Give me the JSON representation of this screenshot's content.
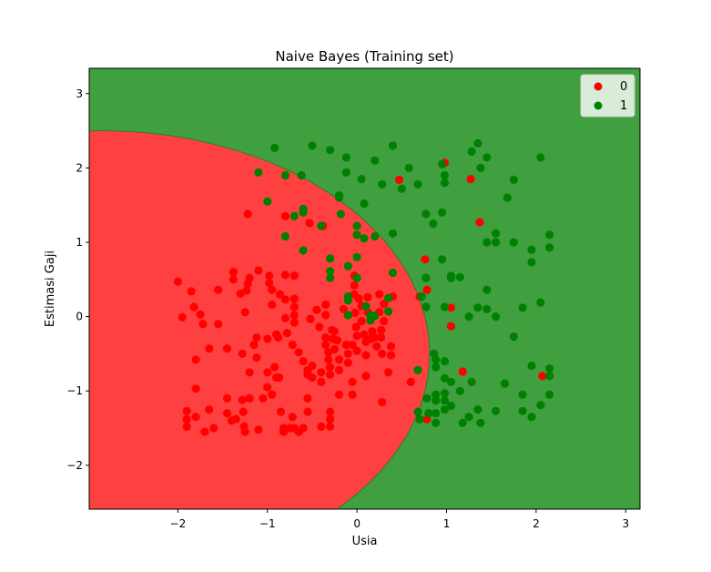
{
  "chart_data": {
    "type": "scatter",
    "title": "Naive Bayes (Training set)",
    "xlabel": "Usia",
    "ylabel": "Estimasi Gaji",
    "xlim": [
      -2.99,
      3.16
    ],
    "ylim": [
      -2.59,
      3.34
    ],
    "xticks": [
      -2,
      -1,
      0,
      1,
      2,
      3
    ],
    "yticks": [
      -2,
      -1,
      0,
      1,
      2,
      3
    ],
    "xtick_labels": [
      "−2",
      "−1",
      "0",
      "1",
      "2",
      "3"
    ],
    "ytick_labels": [
      "−2",
      "−1",
      "0",
      "1",
      "2",
      "3"
    ],
    "grid": false,
    "legend_position": "top-right",
    "decision_regions": [
      {
        "class": "0",
        "color": "#ff4040"
      },
      {
        "class": "1",
        "color": "#40a040"
      }
    ],
    "series": [
      {
        "name": "0",
        "color": "#ff0000",
        "points": [
          [
            -2.0,
            0.47
          ],
          [
            -1.95,
            -0.01
          ],
          [
            -1.9,
            -1.27
          ],
          [
            -1.9,
            -1.38
          ],
          [
            -1.9,
            -1.48
          ],
          [
            -1.85,
            0.34
          ],
          [
            -1.82,
            0.13
          ],
          [
            -1.8,
            -0.58
          ],
          [
            -1.8,
            -0.97
          ],
          [
            -1.8,
            -1.35
          ],
          [
            -1.75,
            0.03
          ],
          [
            -1.72,
            -0.1
          ],
          [
            -1.7,
            -1.55
          ],
          [
            -1.65,
            -0.43
          ],
          [
            -1.65,
            -1.25
          ],
          [
            -1.6,
            -1.5
          ],
          [
            -1.55,
            0.36
          ],
          [
            -1.55,
            -0.1
          ],
          [
            -1.45,
            -0.43
          ],
          [
            -1.45,
            -1.1
          ],
          [
            -1.45,
            -1.3
          ],
          [
            -1.4,
            -1.4
          ],
          [
            -1.38,
            0.6
          ],
          [
            -1.38,
            0.5
          ],
          [
            -1.35,
            -1.38
          ],
          [
            -1.3,
            0.31
          ],
          [
            -1.28,
            -0.5
          ],
          [
            -1.28,
            -1.12
          ],
          [
            -1.27,
            -1.28
          ],
          [
            -1.26,
            -1.48
          ],
          [
            -1.25,
            -1.55
          ],
          [
            -1.25,
            0.06
          ],
          [
            -1.23,
            0.35
          ],
          [
            -1.22,
            0.44
          ],
          [
            -1.22,
            1.38
          ],
          [
            -1.2,
            0.52
          ],
          [
            -1.2,
            -0.75
          ],
          [
            -1.2,
            -1.1
          ],
          [
            -1.15,
            -0.38
          ],
          [
            -1.12,
            -0.28
          ],
          [
            -1.12,
            -0.55
          ],
          [
            -1.1,
            0.62
          ],
          [
            -1.1,
            -1.52
          ],
          [
            -1.05,
            -1.1
          ],
          [
            -1.0,
            -0.3
          ],
          [
            -1.0,
            -0.75
          ],
          [
            -1.0,
            -0.95
          ],
          [
            -0.98,
            0.55
          ],
          [
            -0.98,
            0.45
          ],
          [
            -0.95,
            0.36
          ],
          [
            -0.95,
            0.16
          ],
          [
            -0.95,
            -1.05
          ],
          [
            -0.92,
            -0.68
          ],
          [
            -0.9,
            -0.24
          ],
          [
            -0.9,
            -0.82
          ],
          [
            -0.88,
            -0.28
          ],
          [
            -0.87,
            -0.82
          ],
          [
            -0.86,
            0.3
          ],
          [
            -0.85,
            -1.28
          ],
          [
            -0.82,
            -1.5
          ],
          [
            -0.82,
            -1.55
          ],
          [
            -0.8,
            0.56
          ],
          [
            -0.8,
            0.23
          ],
          [
            -0.8,
            -0.02
          ],
          [
            -0.8,
            1.35
          ],
          [
            -0.78,
            -0.22
          ],
          [
            -0.75,
            -1.5
          ],
          [
            -0.72,
            -0.38
          ],
          [
            -0.72,
            -1.35
          ],
          [
            -0.7,
            0.55
          ],
          [
            -0.7,
            0.24
          ],
          [
            -0.7,
            0.13
          ],
          [
            -0.7,
            0.02
          ],
          [
            -0.7,
            -0.08
          ],
          [
            -0.7,
            -1.5
          ],
          [
            -0.65,
            -0.48
          ],
          [
            -0.65,
            -1.55
          ],
          [
            -0.6,
            -1.5
          ],
          [
            -0.6,
            -0.6
          ],
          [
            -0.55,
            -0.78
          ],
          [
            -0.55,
            -0.72
          ],
          [
            -0.55,
            -1.1
          ],
          [
            -0.55,
            -1.28
          ],
          [
            -0.53,
            1.26
          ],
          [
            -0.52,
            -0.03
          ],
          [
            -0.5,
            -0.66
          ],
          [
            -0.5,
            -0.82
          ],
          [
            -0.45,
            0.09
          ],
          [
            -0.42,
            -0.14
          ],
          [
            -0.4,
            -0.75
          ],
          [
            -0.4,
            -0.88
          ],
          [
            -0.4,
            -1.48
          ],
          [
            -0.38,
            1.22
          ],
          [
            -0.35,
            0.16
          ],
          [
            -0.35,
            0.02
          ],
          [
            -0.35,
            -0.28
          ],
          [
            -0.35,
            -0.38
          ],
          [
            -0.32,
            -0.48
          ],
          [
            -0.32,
            -0.58
          ],
          [
            -0.3,
            -0.68
          ],
          [
            -0.3,
            -0.78
          ],
          [
            -0.3,
            -1.28
          ],
          [
            -0.3,
            -1.38
          ],
          [
            -0.3,
            -1.48
          ],
          [
            -0.28,
            -0.18
          ],
          [
            -0.27,
            -0.3
          ],
          [
            -0.25,
            -0.2
          ],
          [
            -0.25,
            -0.44
          ],
          [
            -0.22,
            -0.32
          ],
          [
            -0.2,
            -1.05
          ],
          [
            -0.2,
            -0.72
          ],
          [
            -0.2,
            -0.58
          ],
          [
            -0.15,
            0.1
          ],
          [
            -0.12,
            -0.38
          ],
          [
            -0.1,
            -0.5
          ],
          [
            -0.1,
            -0.62
          ],
          [
            -0.05,
            -0.38
          ],
          [
            -0.05,
            -0.88
          ],
          [
            -0.05,
            -1.05
          ],
          [
            -0.03,
            0.55
          ],
          [
            -0.03,
            0.42
          ],
          [
            -0.03,
            0.3
          ],
          [
            -0.02,
            0.05
          ],
          [
            -0.01,
            -0.14
          ],
          [
            0.0,
            -0.26
          ],
          [
            0.0,
            -0.46
          ],
          [
            0.02,
            0.24
          ],
          [
            0.05,
            0.14
          ],
          [
            0.05,
            -0.06
          ],
          [
            0.08,
            -0.24
          ],
          [
            0.1,
            -0.34
          ],
          [
            0.1,
            -0.52
          ],
          [
            0.1,
            -0.8
          ],
          [
            0.12,
            0.26
          ],
          [
            0.12,
            0.06
          ],
          [
            0.15,
            -0.3
          ],
          [
            0.17,
            -0.2
          ],
          [
            0.2,
            -0.28
          ],
          [
            0.22,
            -0.4
          ],
          [
            0.25,
            0.3
          ],
          [
            0.25,
            0.06
          ],
          [
            0.27,
            -0.18
          ],
          [
            0.27,
            -0.28
          ],
          [
            0.28,
            -0.5
          ],
          [
            0.28,
            -1.15
          ],
          [
            0.3,
            0.17
          ],
          [
            0.3,
            -0.06
          ],
          [
            0.35,
            0.07
          ],
          [
            0.35,
            -0.75
          ],
          [
            0.38,
            -0.4
          ],
          [
            0.38,
            -0.52
          ],
          [
            0.4,
            0.27
          ],
          [
            0.47,
            1.84
          ],
          [
            0.6,
            -0.88
          ],
          [
            0.7,
            0.27
          ],
          [
            0.76,
            0.77
          ],
          [
            0.78,
            0.36
          ],
          [
            0.78,
            -1.38
          ],
          [
            0.98,
            2.07
          ],
          [
            1.05,
            0.12
          ],
          [
            1.05,
            -0.13
          ],
          [
            1.18,
            -0.74
          ],
          [
            1.27,
            1.85
          ],
          [
            1.37,
            1.27
          ],
          [
            2.07,
            -0.8
          ]
        ]
      },
      {
        "name": "1",
        "color": "#008000",
        "points": [
          [
            -1.1,
            1.94
          ],
          [
            -1.0,
            1.55
          ],
          [
            -0.92,
            2.27
          ],
          [
            -0.8,
            1.9
          ],
          [
            -0.8,
            1.08
          ],
          [
            -0.7,
            1.35
          ],
          [
            -0.62,
            1.9
          ],
          [
            -0.6,
            1.4
          ],
          [
            -0.6,
            1.45
          ],
          [
            -0.6,
            0.89
          ],
          [
            -0.5,
            2.3
          ],
          [
            -0.4,
            1.22
          ],
          [
            -0.3,
            2.24
          ],
          [
            -0.3,
            0.78
          ],
          [
            -0.3,
            0.61
          ],
          [
            -0.3,
            0.52
          ],
          [
            -0.2,
            1.6
          ],
          [
            -0.2,
            1.63
          ],
          [
            -0.18,
            1.38
          ],
          [
            -0.12,
            2.14
          ],
          [
            -0.12,
            1.94
          ],
          [
            -0.1,
            0.68
          ],
          [
            -0.1,
            0.27
          ],
          [
            -0.1,
            0.22
          ],
          [
            -0.1,
            0.02
          ],
          [
            0.0,
            1.22
          ],
          [
            0.0,
            1.1
          ],
          [
            0.0,
            0.8
          ],
          [
            0.0,
            0.52
          ],
          [
            0.05,
            1.85
          ],
          [
            0.08,
            1.52
          ],
          [
            0.08,
            1.05
          ],
          [
            0.1,
            0.14
          ],
          [
            0.15,
            0.02
          ],
          [
            0.15,
            -0.05
          ],
          [
            0.2,
            2.1
          ],
          [
            0.2,
            1.08
          ],
          [
            0.2,
            0.01
          ],
          [
            0.28,
            1.78
          ],
          [
            0.35,
            0.07
          ],
          [
            0.35,
            0.25
          ],
          [
            0.4,
            2.3
          ],
          [
            0.4,
            1.12
          ],
          [
            0.4,
            0.59
          ],
          [
            0.5,
            1.72
          ],
          [
            0.58,
            2.0
          ],
          [
            0.68,
            -0.72
          ],
          [
            0.68,
            1.78
          ],
          [
            0.68,
            -1.28
          ],
          [
            0.7,
            -1.38
          ],
          [
            0.72,
            0.27
          ],
          [
            0.77,
            1.38
          ],
          [
            0.77,
            0.52
          ],
          [
            0.77,
            0.13
          ],
          [
            0.78,
            -1.1
          ],
          [
            0.8,
            -1.3
          ],
          [
            0.85,
            1.25
          ],
          [
            0.86,
            -0.5
          ],
          [
            0.88,
            -0.58
          ],
          [
            0.88,
            -0.68
          ],
          [
            0.88,
            -1.05
          ],
          [
            0.88,
            -1.13
          ],
          [
            0.88,
            -1.3
          ],
          [
            0.88,
            -1.43
          ],
          [
            0.95,
            0.77
          ],
          [
            0.95,
            1.4
          ],
          [
            0.95,
            2.05
          ],
          [
            0.98,
            1.9
          ],
          [
            0.98,
            1.8
          ],
          [
            0.98,
            0.13
          ],
          [
            0.98,
            -0.6
          ],
          [
            0.98,
            -0.83
          ],
          [
            0.98,
            -1.03
          ],
          [
            0.98,
            -1.13
          ],
          [
            0.98,
            -1.25
          ],
          [
            1.05,
            0.55
          ],
          [
            1.05,
            0.52
          ],
          [
            1.05,
            -0.88
          ],
          [
            1.05,
            -1.2
          ],
          [
            1.15,
            0.53
          ],
          [
            1.15,
            -1.0
          ],
          [
            1.18,
            -1.43
          ],
          [
            1.25,
            0.0
          ],
          [
            1.25,
            -1.35
          ],
          [
            1.28,
            2.22
          ],
          [
            1.28,
            -0.88
          ],
          [
            1.35,
            2.33
          ],
          [
            1.35,
            0.12
          ],
          [
            1.35,
            -1.25
          ],
          [
            1.38,
            2.0
          ],
          [
            1.38,
            -1.43
          ],
          [
            1.45,
            0.1
          ],
          [
            1.45,
            0.36
          ],
          [
            1.45,
            1.0
          ],
          [
            1.45,
            2.14
          ],
          [
            1.55,
            1.12
          ],
          [
            1.55,
            1.0
          ],
          [
            1.55,
            0.0
          ],
          [
            1.55,
            -1.27
          ],
          [
            1.65,
            -0.9
          ],
          [
            1.68,
            1.6
          ],
          [
            1.75,
            1.84
          ],
          [
            1.75,
            1.0
          ],
          [
            1.75,
            -0.27
          ],
          [
            1.85,
            0.12
          ],
          [
            1.85,
            -1.05
          ],
          [
            1.85,
            -1.27
          ],
          [
            1.95,
            -1.35
          ],
          [
            1.95,
            -0.66
          ],
          [
            1.95,
            0.9
          ],
          [
            1.95,
            0.73
          ],
          [
            2.05,
            2.14
          ],
          [
            2.05,
            0.19
          ],
          [
            2.05,
            -1.19
          ],
          [
            2.15,
            1.1
          ],
          [
            2.15,
            0.93
          ],
          [
            2.15,
            -0.7
          ],
          [
            2.15,
            -0.8
          ],
          [
            2.15,
            -1.05
          ]
        ]
      }
    ]
  }
}
